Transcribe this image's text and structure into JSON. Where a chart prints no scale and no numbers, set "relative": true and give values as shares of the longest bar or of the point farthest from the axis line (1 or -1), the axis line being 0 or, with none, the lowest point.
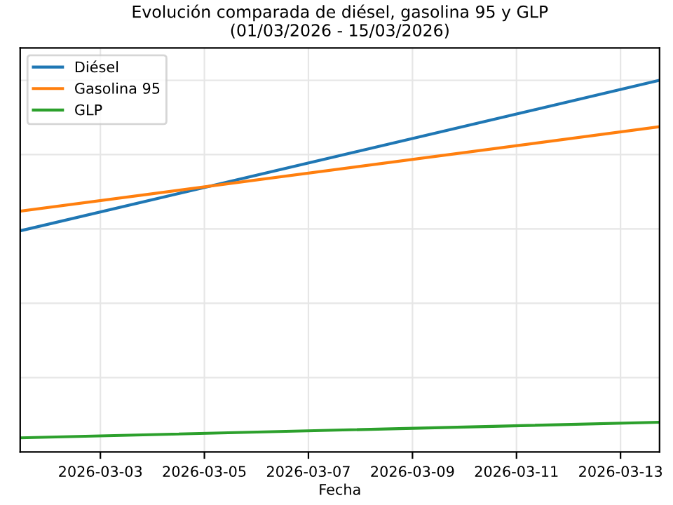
{
  "chart_data": {
    "type": "line",
    "title": "Evolución comparada de diésel, gasolina 95 y GLP\n(01/03/2026 - 15/03/2026)",
    "xlabel": "Fecha",
    "relative": true,
    "x": [
      "2026-03-01T11:00",
      "2026-03-13T18:00"
    ],
    "series": [
      {
        "name": "Diésel",
        "color": "#1f77b4",
        "values": [
          0.595,
          1.0
        ]
      },
      {
        "name": "Gasolina 95",
        "color": "#ff7f0e",
        "values": [
          0.648,
          0.875
        ]
      },
      {
        "name": "GLP",
        "color": "#2ca02c",
        "values": [
          0.038,
          0.08
        ]
      }
    ],
    "xlim": [
      "2026-03-01T11:00",
      "2026-03-13T18:00"
    ],
    "xticks": [
      "2026-03-03",
      "2026-03-05",
      "2026-03-07",
      "2026-03-09",
      "2026-03-11",
      "2026-03-13"
    ],
    "grid": true,
    "legend": "top left",
    "line_style": "solid",
    "marker": "none"
  }
}
